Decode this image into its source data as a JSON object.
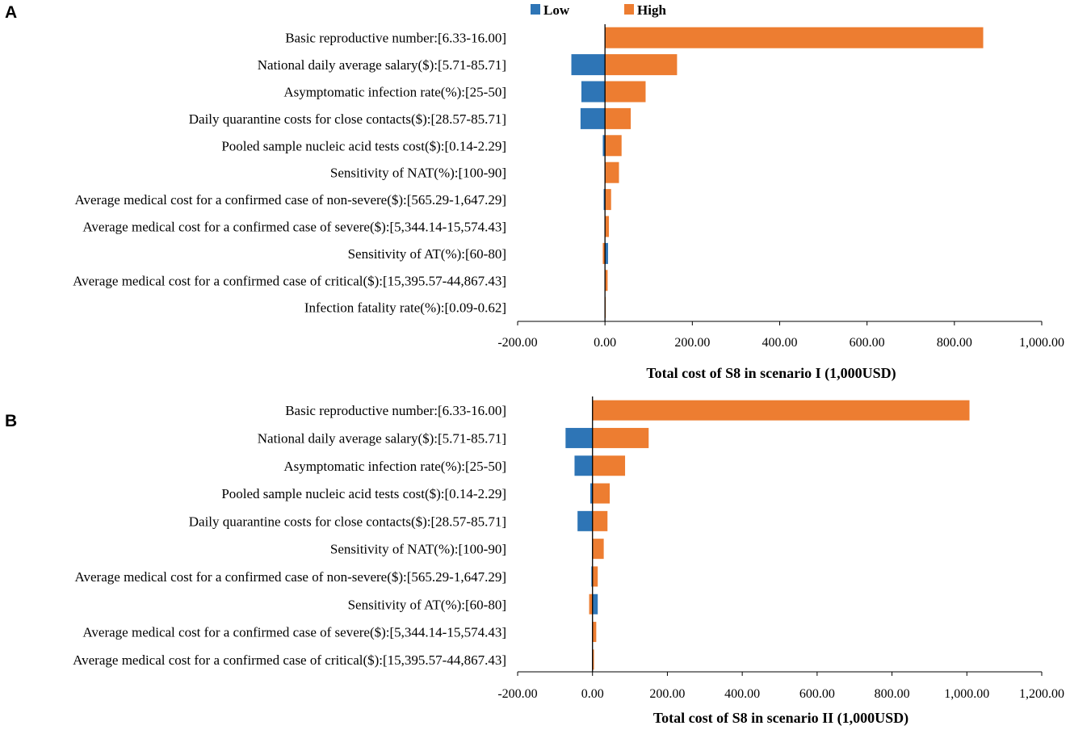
{
  "legend": {
    "low_label": "Low",
    "high_label": "High",
    "low_color": "#2E75B6",
    "high_color": "#ED7D31"
  },
  "chart_data": [
    {
      "type": "bar",
      "orientation": "horizontal",
      "subtype": "tornado",
      "panel_label": "A",
      "xlabel": "Total cost of S8 in scenario I (1,000USD)",
      "xlim": [
        -200,
        1000
      ],
      "x_ticks": [
        "-200.00",
        "0.00",
        "200.00",
        "400.00",
        "600.00",
        "800.00",
        "1,000.00"
      ],
      "x_tick_values": [
        -200,
        0,
        200,
        400,
        600,
        800,
        1000
      ],
      "categories": [
        "Basic reproductive number:[6.33-16.00]",
        "National daily average salary($):[5.71-85.71]",
        "Asymptomatic infection rate(%):[25-50]",
        "Daily quarantine costs for close contacts($):[28.57-85.71]",
        "Pooled sample nucleic acid tests cost($):[0.14-2.29]",
        "Sensitivity of NAT(%):[100-90]",
        "Average medical cost for a confirmed case of non-severe($):[565.29-1,647.29]",
        "Average medical cost for a confirmed case of severe($):[5,344.14-15,574.43]",
        "Sensitivity of AT(%):[60-80]",
        "Average medical cost for a confirmed case of critical($):[15,395.57-44,867.43]",
        "Infection fatality rate(%):[0.09-0.62]"
      ],
      "series": [
        {
          "name": "Low",
          "values": [
            0,
            -77,
            -54,
            -56,
            -5,
            0,
            -3,
            -1,
            7,
            -1,
            0
          ]
        },
        {
          "name": "High",
          "values": [
            866,
            165,
            93,
            59,
            38,
            32,
            14,
            9,
            -5,
            6,
            1
          ]
        }
      ]
    },
    {
      "type": "bar",
      "orientation": "horizontal",
      "subtype": "tornado",
      "panel_label": "B",
      "xlabel": "Total cost of S8 in scenario II (1,000USD)",
      "xlim": [
        -200,
        1200
      ],
      "x_ticks": [
        "-200.00",
        "0.00",
        "200.00",
        "400.00",
        "600.00",
        "800.00",
        "1,000.00",
        "1,200.00"
      ],
      "x_tick_values": [
        -200,
        0,
        200,
        400,
        600,
        800,
        1000,
        1200
      ],
      "categories": [
        "Basic reproductive number:[6.33-16.00]",
        "National daily average salary($):[5.71-85.71]",
        "Asymptomatic infection rate(%):[25-50]",
        "Pooled sample nucleic acid tests cost($):[0.14-2.29]",
        "Daily quarantine costs for close contacts($):[28.57-85.71]",
        "Sensitivity of NAT(%):[100-90]",
        "Average medical cost for a confirmed case of non-severe($):[565.29-1,647.29]",
        "Sensitivity of AT(%):[60-80]",
        "Average medical cost for a confirmed case of severe($):[5,344.14-15,574.43]",
        "Average medical cost for a confirmed case of critical($):[15,395.57-44,867.43]"
      ],
      "series": [
        {
          "name": "Low",
          "values": [
            0,
            -72,
            -48,
            -6,
            -40,
            0,
            -3,
            14,
            -1,
            -1
          ]
        },
        {
          "name": "High",
          "values": [
            1007,
            150,
            87,
            46,
            40,
            30,
            14,
            -9,
            10,
            4
          ]
        }
      ]
    }
  ]
}
